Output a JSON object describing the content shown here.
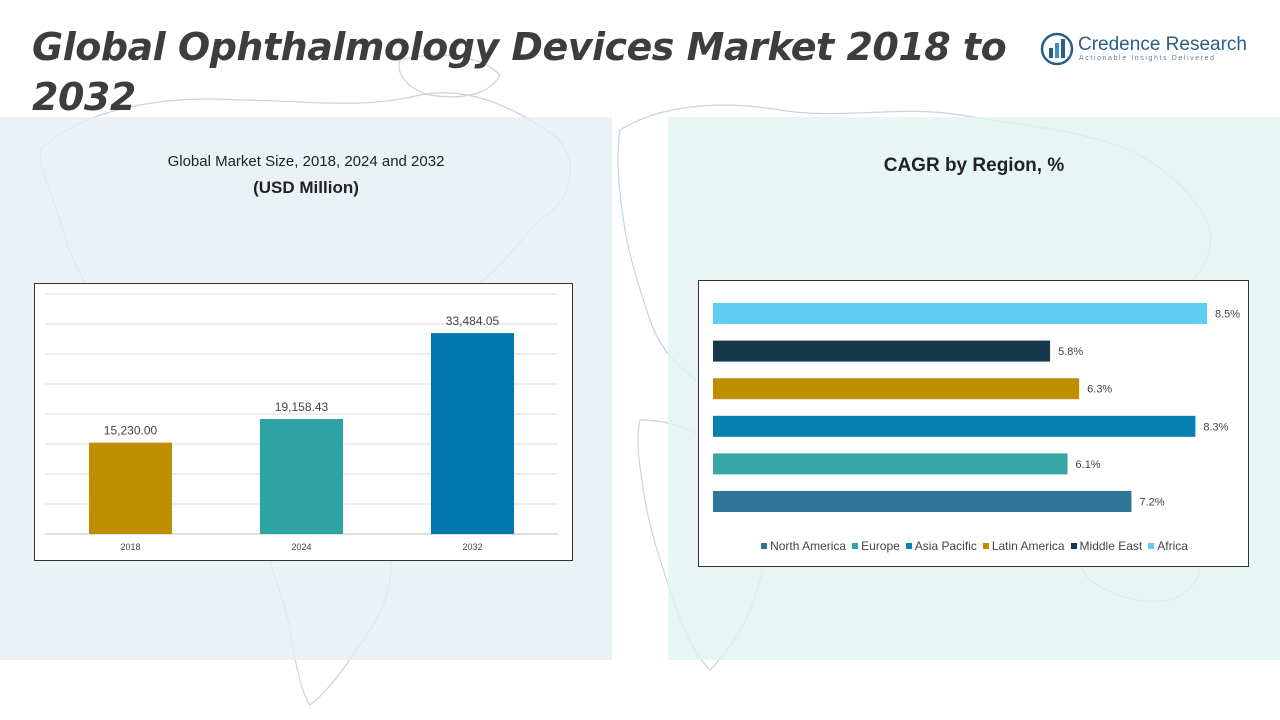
{
  "title": "Global Ophthalmology Devices Market 2018 to 2032",
  "brand": {
    "name": "Credence Research",
    "tagline": "Actionable Insights Delivered",
    "logo_icon": "bar-chart-globe-icon",
    "color": "#2a5d8a"
  },
  "left_panel": {
    "subtitle": "Global Market Size, 2018, 2024 and 2032",
    "unit": "(USD Million)"
  },
  "right_panel": {
    "title": "CAGR by Region, %"
  },
  "chart_data": [
    {
      "type": "bar",
      "categories": [
        "2018",
        "2024",
        "2032"
      ],
      "values": [
        15230.0,
        19158.43,
        33484.05
      ],
      "value_labels": [
        "15,230.00",
        "19,158.43",
        "33,484.05"
      ],
      "colors": [
        "#bf8f00",
        "#2ea3a3",
        "#0277ae"
      ],
      "ylim": [
        0,
        40000
      ],
      "grid": true,
      "legend": "none"
    },
    {
      "type": "bar",
      "orientation": "horizontal",
      "categories": [
        "North America",
        "Europe",
        "Asia Pacific",
        "Latin America",
        "Middle East",
        "Africa"
      ],
      "values": [
        7.2,
        6.1,
        8.3,
        6.3,
        5.8,
        8.5
      ],
      "value_labels": [
        "7.2%",
        "6.1%",
        "8.3%",
        "6.3%",
        "5.8%",
        "8.5%"
      ],
      "colors": [
        "#2f7599",
        "#36a6a6",
        "#0580b0",
        "#bf8f00",
        "#15384a",
        "#5fcdf2"
      ],
      "xlim": [
        0,
        8.5
      ],
      "grid": false,
      "legend": "bottom"
    }
  ]
}
